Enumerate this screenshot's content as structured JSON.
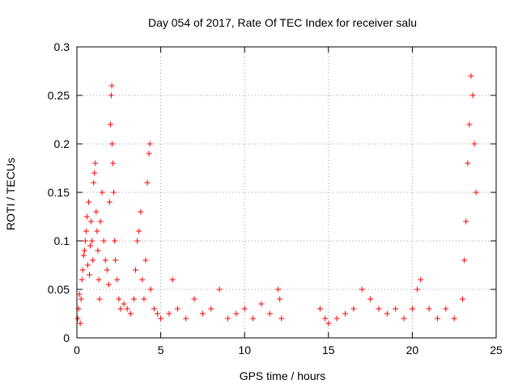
{
  "chart_data": {
    "type": "scatter",
    "title": "Day 054 of 2017, Rate Of TEC Index for receiver salu",
    "xlabel": "GPS time / hours",
    "ylabel": "ROTI / TECUs",
    "xlim": [
      0,
      25
    ],
    "ylim": [
      0,
      0.3
    ],
    "xticks": [
      "0",
      "5",
      "10",
      "15",
      "20",
      "25"
    ],
    "yticks": [
      "0",
      "0.05",
      "0.1",
      "0.15",
      "0.2",
      "0.25",
      "0.3"
    ],
    "grid": true,
    "marker": "plus",
    "color": "#ff0000",
    "series": [
      {
        "points": [
          [
            0.05,
            0.02
          ],
          [
            0.1,
            0.03
          ],
          [
            0.15,
            0.045
          ],
          [
            0.2,
            0.015
          ],
          [
            0.25,
            0.04
          ],
          [
            0.3,
            0.06
          ],
          [
            0.35,
            0.07
          ],
          [
            0.4,
            0.085
          ],
          [
            0.45,
            0.09
          ],
          [
            0.5,
            0.1
          ],
          [
            0.55,
            0.11
          ],
          [
            0.6,
            0.125
          ],
          [
            0.65,
            0.075
          ],
          [
            0.7,
            0.14
          ],
          [
            0.75,
            0.065
          ],
          [
            0.8,
            0.095
          ],
          [
            0.85,
            0.12
          ],
          [
            0.9,
            0.1
          ],
          [
            0.95,
            0.08
          ],
          [
            1.0,
            0.16
          ],
          [
            1.05,
            0.17
          ],
          [
            1.1,
            0.18
          ],
          [
            1.15,
            0.13
          ],
          [
            1.2,
            0.11
          ],
          [
            1.25,
            0.09
          ],
          [
            1.3,
            0.06
          ],
          [
            1.35,
            0.04
          ],
          [
            1.4,
            0.12
          ],
          [
            1.5,
            0.15
          ],
          [
            1.6,
            0.1
          ],
          [
            1.7,
            0.08
          ],
          [
            1.8,
            0.07
          ],
          [
            1.9,
            0.055
          ],
          [
            1.95,
            0.14
          ],
          [
            2.0,
            0.22
          ],
          [
            2.05,
            0.25
          ],
          [
            2.08,
            0.26
          ],
          [
            2.1,
            0.2
          ],
          [
            2.15,
            0.18
          ],
          [
            2.2,
            0.15
          ],
          [
            2.25,
            0.1
          ],
          [
            2.3,
            0.08
          ],
          [
            2.4,
            0.06
          ],
          [
            2.5,
            0.04
          ],
          [
            2.6,
            0.03
          ],
          [
            2.8,
            0.035
          ],
          [
            3.0,
            0.03
          ],
          [
            3.2,
            0.025
          ],
          [
            3.4,
            0.04
          ],
          [
            3.5,
            0.07
          ],
          [
            3.6,
            0.1
          ],
          [
            3.7,
            0.11
          ],
          [
            3.8,
            0.13
          ],
          [
            3.9,
            0.06
          ],
          [
            4.0,
            0.04
          ],
          [
            4.1,
            0.08
          ],
          [
            4.2,
            0.16
          ],
          [
            4.3,
            0.19
          ],
          [
            4.35,
            0.2
          ],
          [
            4.4,
            0.05
          ],
          [
            4.6,
            0.03
          ],
          [
            4.8,
            0.025
          ],
          [
            5.0,
            0.02
          ],
          [
            5.5,
            0.025
          ],
          [
            5.7,
            0.06
          ],
          [
            6.0,
            0.03
          ],
          [
            6.5,
            0.02
          ],
          [
            7.0,
            0.04
          ],
          [
            7.5,
            0.025
          ],
          [
            8.0,
            0.03
          ],
          [
            8.5,
            0.05
          ],
          [
            9.0,
            0.02
          ],
          [
            9.5,
            0.025
          ],
          [
            10.0,
            0.03
          ],
          [
            10.5,
            0.02
          ],
          [
            11.0,
            0.035
          ],
          [
            11.5,
            0.025
          ],
          [
            12.0,
            0.05
          ],
          [
            12.1,
            0.04
          ],
          [
            12.2,
            0.02
          ],
          [
            14.5,
            0.03
          ],
          [
            14.8,
            0.02
          ],
          [
            15.0,
            0.015
          ],
          [
            15.5,
            0.02
          ],
          [
            16.0,
            0.025
          ],
          [
            16.5,
            0.03
          ],
          [
            17.0,
            0.05
          ],
          [
            17.5,
            0.04
          ],
          [
            18.0,
            0.03
          ],
          [
            18.5,
            0.025
          ],
          [
            19.0,
            0.03
          ],
          [
            19.5,
            0.02
          ],
          [
            20.0,
            0.03
          ],
          [
            20.3,
            0.05
          ],
          [
            20.5,
            0.06
          ],
          [
            21.0,
            0.03
          ],
          [
            21.5,
            0.02
          ],
          [
            22.0,
            0.03
          ],
          [
            22.5,
            0.02
          ],
          [
            23.0,
            0.04
          ],
          [
            23.1,
            0.08
          ],
          [
            23.2,
            0.12
          ],
          [
            23.3,
            0.18
          ],
          [
            23.4,
            0.22
          ],
          [
            23.5,
            0.27
          ],
          [
            23.6,
            0.25
          ],
          [
            23.7,
            0.2
          ],
          [
            23.8,
            0.15
          ]
        ]
      }
    ]
  }
}
